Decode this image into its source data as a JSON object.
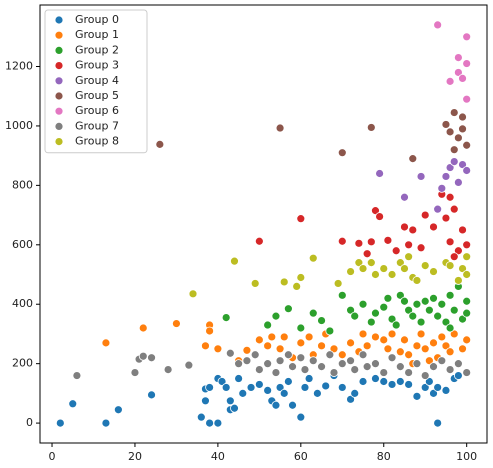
{
  "chart_data": {
    "type": "scatter",
    "xlim": [
      -2.9,
      104.9
    ],
    "ylim": [
      -67,
      1407
    ],
    "xticks": [
      0,
      20,
      40,
      60,
      80,
      100
    ],
    "yticks": [
      0,
      200,
      400,
      600,
      800,
      1000,
      1200
    ],
    "legend": "upper left",
    "series": [
      {
        "name": "Group 0",
        "color": "#1f77b4",
        "x": [
          2,
          5,
          13,
          16,
          24,
          36,
          37,
          37,
          38,
          38,
          40,
          40,
          41,
          42,
          43,
          43,
          44,
          45,
          46,
          48,
          50,
          52,
          53,
          54,
          55,
          56,
          57,
          58,
          60,
          61,
          62,
          64,
          66,
          68,
          70,
          72,
          73,
          75,
          78,
          80,
          82,
          84,
          86,
          88,
          90,
          91,
          92,
          93,
          95,
          97,
          98,
          93
        ],
        "values": [
          0,
          65,
          0,
          45,
          95,
          20,
          75,
          115,
          0,
          120,
          150,
          0,
          140,
          120,
          45,
          75,
          50,
          150,
          100,
          120,
          130,
          110,
          75,
          60,
          120,
          100,
          140,
          60,
          20,
          120,
          150,
          100,
          125,
          160,
          120,
          80,
          100,
          140,
          150,
          140,
          130,
          140,
          130,
          90,
          120,
          140,
          100,
          0,
          110,
          150,
          160,
          120
        ]
      },
      {
        "name": "Group 1",
        "color": "#ff7f0e",
        "x": [
          13,
          22,
          30,
          37,
          38,
          38,
          40,
          45,
          47,
          50,
          52,
          53,
          55,
          56,
          58,
          60,
          62,
          63,
          65,
          66,
          68,
          70,
          72,
          74,
          75,
          76,
          78,
          80,
          81,
          82,
          84,
          85,
          86,
          88,
          89,
          90,
          92,
          93,
          94,
          95,
          96,
          97,
          98,
          99,
          100,
          87,
          91
        ],
        "values": [
          270,
          320,
          335,
          260,
          330,
          310,
          250,
          210,
          245,
          280,
          260,
          290,
          250,
          290,
          220,
          270,
          290,
          230,
          260,
          300,
          250,
          230,
          270,
          240,
          300,
          260,
          290,
          280,
          250,
          300,
          240,
          280,
          230,
          260,
          300,
          250,
          270,
          220,
          290,
          260,
          240,
          300,
          200,
          250,
          280,
          200,
          210
        ]
      },
      {
        "name": "Group 2",
        "color": "#2ca02c",
        "x": [
          42,
          52,
          54,
          57,
          60,
          63,
          65,
          67,
          70,
          72,
          73,
          75,
          77,
          78,
          80,
          81,
          82,
          83,
          84,
          85,
          86,
          87,
          88,
          89,
          90,
          91,
          92,
          93,
          94,
          95,
          96,
          97,
          98,
          99,
          100,
          96,
          100
        ],
        "values": [
          355,
          330,
          360,
          385,
          320,
          370,
          345,
          310,
          430,
          380,
          360,
          400,
          340,
          370,
          390,
          420,
          350,
          330,
          430,
          410,
          380,
          360,
          400,
          340,
          410,
          380,
          420,
          360,
          400,
          340,
          430,
          380,
          460,
          350,
          410,
          320,
          370
        ]
      },
      {
        "name": "Group 3",
        "color": "#d62728",
        "x": [
          50,
          60,
          70,
          74,
          76,
          77,
          78,
          79,
          81,
          83,
          85,
          86,
          87,
          89,
          90,
          92,
          94,
          95,
          96,
          97,
          98,
          99,
          100,
          97,
          96
        ],
        "values": [
          612,
          688,
          612,
          605,
          570,
          610,
          715,
          695,
          615,
          580,
          660,
          600,
          650,
          590,
          700,
          660,
          770,
          690,
          610,
          720,
          580,
          650,
          600,
          560,
          760
        ]
      },
      {
        "name": "Group 4",
        "color": "#9467bd",
        "x": [
          79,
          85,
          89,
          93,
          94,
          95,
          96,
          97,
          98,
          99,
          100
        ],
        "values": [
          840,
          760,
          830,
          720,
          790,
          830,
          860,
          880,
          810,
          870,
          850
        ]
      },
      {
        "name": "Group 5",
        "color": "#8c564b",
        "x": [
          26,
          55,
          70,
          77,
          87,
          95,
          96,
          97,
          98,
          99,
          100,
          97,
          99
        ],
        "values": [
          938,
          993,
          910,
          995,
          890,
          1005,
          980,
          1045,
          960,
          1030,
          935,
          920,
          990
        ]
      },
      {
        "name": "Group 6",
        "color": "#e377c2",
        "x": [
          93,
          96,
          98,
          99,
          100,
          100,
          100,
          98
        ],
        "values": [
          1340,
          1150,
          1180,
          1160,
          1300,
          1210,
          1090,
          1230
        ]
      },
      {
        "name": "Group 7",
        "color": "#7f7f7f",
        "x": [
          6,
          20,
          21,
          22,
          24,
          28,
          33,
          43,
          45,
          47,
          49,
          50,
          52,
          54,
          55,
          57,
          58,
          60,
          61,
          63,
          65,
          67,
          68,
          70,
          72,
          73,
          75,
          76,
          78,
          80,
          82,
          84,
          86,
          88,
          90,
          92,
          94,
          96,
          98,
          100
        ],
        "values": [
          160,
          170,
          215,
          225,
          220,
          180,
          195,
          235,
          200,
          210,
          230,
          180,
          200,
          170,
          210,
          230,
          190,
          220,
          180,
          210,
          190,
          230,
          170,
          200,
          210,
          180,
          230,
          190,
          200,
          170,
          220,
          190,
          170,
          200,
          160,
          190,
          210,
          180,
          200,
          170
        ]
      },
      {
        "name": "Group 8",
        "color": "#bcbd22",
        "x": [
          34,
          44,
          49,
          56,
          59,
          60,
          63,
          69,
          72,
          74,
          75,
          77,
          78,
          80,
          82,
          84,
          85,
          86,
          87,
          88,
          90,
          92,
          95,
          96,
          98,
          99,
          100,
          100
        ],
        "values": [
          435,
          545,
          470,
          475,
          460,
          490,
          555,
          470,
          510,
          540,
          520,
          540,
          500,
          520,
          500,
          540,
          520,
          560,
          490,
          480,
          530,
          510,
          540,
          530,
          480,
          520,
          560,
          500
        ]
      }
    ]
  }
}
